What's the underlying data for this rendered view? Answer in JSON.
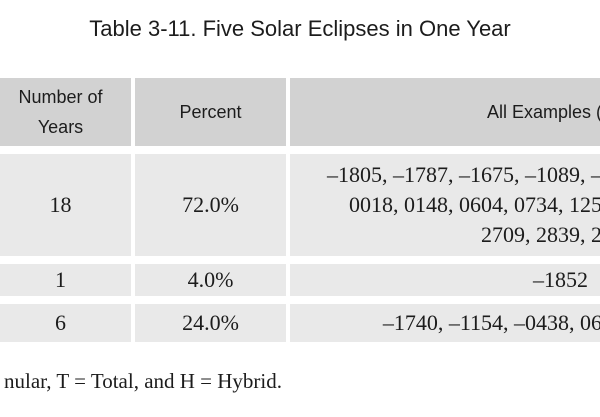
{
  "title": "Table 3-11. Five Solar Eclipses in One Year",
  "table": {
    "columns": [
      {
        "label": "Number of Years"
      },
      {
        "label": "Percent"
      },
      {
        "label": "All Examples ("
      }
    ],
    "rows": [
      {
        "years": "18",
        "percent": "72.0%",
        "examples_lines": [
          "–1805, –1787, –1675, –1089, –",
          "0018, 0148, 0604, 0734, 125",
          "2709, 2839, 2"
        ]
      },
      {
        "years": "1",
        "percent": "4.0%",
        "examples_lines": [
          "–1852"
        ]
      },
      {
        "years": "6",
        "percent": "24.0%",
        "examples_lines": [
          "–1740, –1154, –0438, 06"
        ]
      }
    ]
  },
  "footnote": "nular, T = Total, and H = Hybrid.",
  "colors": {
    "header_bg": "#d2d2d2",
    "row_bg": "#e9e9e9",
    "text": "#1c1c1c",
    "page_bg": "#ffffff"
  }
}
